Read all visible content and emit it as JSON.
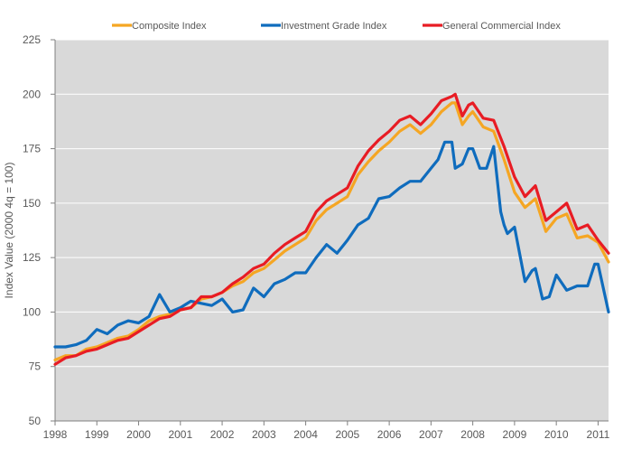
{
  "chart_data": {
    "type": "line",
    "title": "",
    "xlabel": "",
    "ylabel": "Index Value (2000 4q = 100)",
    "xlim": [
      1998,
      2011.25
    ],
    "ylim": [
      50,
      225
    ],
    "yticks": [
      50,
      75,
      100,
      125,
      150,
      175,
      200,
      225
    ],
    "xticks": [
      1998,
      1999,
      2000,
      2001,
      2002,
      2003,
      2004,
      2005,
      2006,
      2007,
      2008,
      2009,
      2010,
      2011
    ],
    "xtick_labels": [
      "1998",
      "1999",
      "2000",
      "2001",
      "2002",
      "2003",
      "2004",
      "2005",
      "2006",
      "2007",
      "2008",
      "2009",
      "2010",
      "2011"
    ],
    "grid": "horizontal",
    "legend_position": "top",
    "plot_background": "#d9d9d9",
    "series": [
      {
        "name": "Composite Index",
        "color": "#f5a623",
        "x": [
          1998.0,
          1998.25,
          1998.5,
          1998.75,
          1999.0,
          1999.25,
          1999.5,
          1999.75,
          2000.0,
          2000.25,
          2000.5,
          2000.75,
          2001.0,
          2001.25,
          2001.5,
          2001.75,
          2002.0,
          2002.25,
          2002.5,
          2002.75,
          2003.0,
          2003.25,
          2003.5,
          2003.75,
          2004.0,
          2004.25,
          2004.5,
          2004.75,
          2005.0,
          2005.25,
          2005.5,
          2005.75,
          2006.0,
          2006.25,
          2006.5,
          2006.75,
          2007.0,
          2007.25,
          2007.5,
          2007.58,
          2007.75,
          2007.9,
          2008.0,
          2008.25,
          2008.5,
          2008.75,
          2009.0,
          2009.25,
          2009.5,
          2009.75,
          2010.0,
          2010.25,
          2010.5,
          2010.75,
          2011.0,
          2011.25
        ],
        "y": [
          78,
          80,
          80,
          83,
          84,
          86,
          88,
          89,
          92,
          96,
          98,
          99,
          101,
          102,
          106,
          107,
          109,
          112,
          114,
          118,
          120,
          124,
          128,
          131,
          134,
          142,
          147,
          150,
          153,
          163,
          169,
          174,
          178,
          183,
          186,
          182,
          186,
          192,
          196,
          196,
          186,
          190,
          192,
          185,
          183,
          170,
          155,
          148,
          152,
          137,
          143,
          145,
          134,
          135,
          132,
          123
        ]
      },
      {
        "name": "Investment Grade Index",
        "color": "#0f6cbd",
        "x": [
          1998.0,
          1998.25,
          1998.5,
          1998.75,
          1999.0,
          1999.25,
          1999.5,
          1999.75,
          2000.0,
          2000.25,
          2000.5,
          2000.75,
          2001.0,
          2001.25,
          2001.5,
          2001.75,
          2002.0,
          2002.25,
          2002.5,
          2002.75,
          2003.0,
          2003.25,
          2003.5,
          2003.75,
          2004.0,
          2004.25,
          2004.5,
          2004.75,
          2005.0,
          2005.25,
          2005.5,
          2005.75,
          2006.0,
          2006.25,
          2006.5,
          2006.75,
          2007.0,
          2007.17,
          2007.33,
          2007.5,
          2007.58,
          2007.75,
          2007.9,
          2008.0,
          2008.17,
          2008.33,
          2008.5,
          2008.67,
          2008.75,
          2008.83,
          2009.0,
          2009.25,
          2009.42,
          2009.5,
          2009.67,
          2009.83,
          2010.0,
          2010.25,
          2010.5,
          2010.75,
          2010.92,
          2011.0,
          2011.25
        ],
        "y": [
          84,
          84,
          85,
          87,
          92,
          90,
          94,
          96,
          95,
          98,
          108,
          100,
          102,
          105,
          104,
          103,
          106,
          100,
          101,
          111,
          107,
          113,
          115,
          118,
          118,
          125,
          131,
          127,
          133,
          140,
          143,
          152,
          153,
          157,
          160,
          160,
          166,
          170,
          178,
          178,
          166,
          168,
          175,
          175,
          166,
          166,
          176,
          146,
          140,
          136,
          139,
          114,
          119,
          120,
          106,
          107,
          117,
          110,
          112,
          112,
          122,
          122,
          100
        ]
      },
      {
        "name": "General Commercial Index",
        "color": "#e81c24",
        "x": [
          1998.0,
          1998.25,
          1998.5,
          1998.75,
          1999.0,
          1999.25,
          1999.5,
          1999.75,
          2000.0,
          2000.25,
          2000.5,
          2000.75,
          2001.0,
          2001.25,
          2001.5,
          2001.75,
          2002.0,
          2002.25,
          2002.5,
          2002.75,
          2003.0,
          2003.25,
          2003.5,
          2003.75,
          2004.0,
          2004.25,
          2004.5,
          2004.75,
          2005.0,
          2005.25,
          2005.5,
          2005.75,
          2006.0,
          2006.25,
          2006.5,
          2006.75,
          2007.0,
          2007.25,
          2007.5,
          2007.58,
          2007.75,
          2007.9,
          2008.0,
          2008.25,
          2008.5,
          2008.75,
          2009.0,
          2009.25,
          2009.5,
          2009.75,
          2010.0,
          2010.25,
          2010.5,
          2010.75,
          2011.0,
          2011.25
        ],
        "y": [
          76,
          79,
          80,
          82,
          83,
          85,
          87,
          88,
          91,
          94,
          97,
          98,
          101,
          102,
          107,
          107,
          109,
          113,
          116,
          120,
          122,
          127,
          131,
          134,
          137,
          146,
          151,
          154,
          157,
          167,
          174,
          179,
          183,
          188,
          190,
          186,
          191,
          197,
          199,
          200,
          190,
          195,
          196,
          189,
          188,
          176,
          162,
          153,
          158,
          142,
          146,
          150,
          138,
          140,
          133,
          127
        ]
      }
    ]
  }
}
